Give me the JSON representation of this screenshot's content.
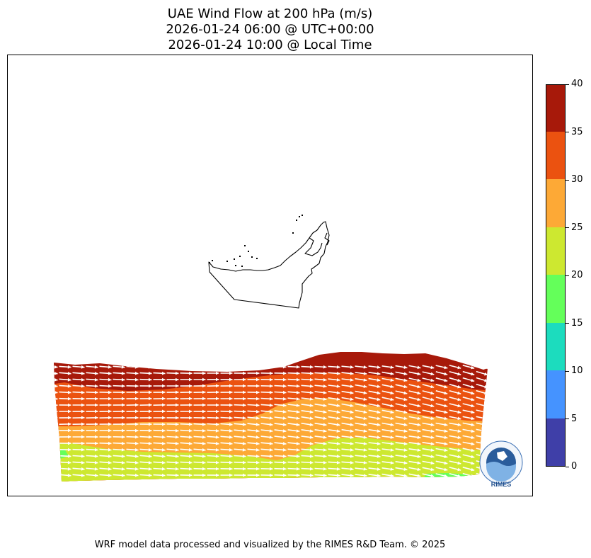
{
  "title": {
    "line1": "UAE Wind Flow at 200 hPa (m/s)",
    "line2": "2026-01-24 06:00 @ UTC+00:00",
    "line3": "2026-01-24 10:00 @ Local Time"
  },
  "colorbar": {
    "levels": [
      0,
      5,
      10,
      15,
      20,
      25,
      30,
      35,
      40
    ],
    "labels": [
      "0",
      "5",
      "10",
      "15",
      "20",
      "25",
      "30",
      "35",
      "40"
    ],
    "colors": [
      "#3f3fa8",
      "#4593ff",
      "#1cdcbe",
      "#64ff5a",
      "#cde830",
      "#fda936",
      "#eb5210",
      "#a7190a"
    ]
  },
  "map": {
    "country": "UAE",
    "level": "200 hPa",
    "units": "m/s",
    "wind_direction": "westerly (left to right)",
    "speed_bands_north_to_south": [
      "35-40",
      "30-35",
      "25-30",
      "20-25"
    ],
    "coastline_color": "#000000",
    "vector_color": "#ffffff"
  },
  "logo": {
    "name": "rimes-logo",
    "text": "RIMES",
    "ring_text": "Regional Integrated Multi-Hazard Early Warning System"
  },
  "footer": {
    "text": "WRF model data processed and visualized by the RIMES R&D Team. © 2025"
  }
}
